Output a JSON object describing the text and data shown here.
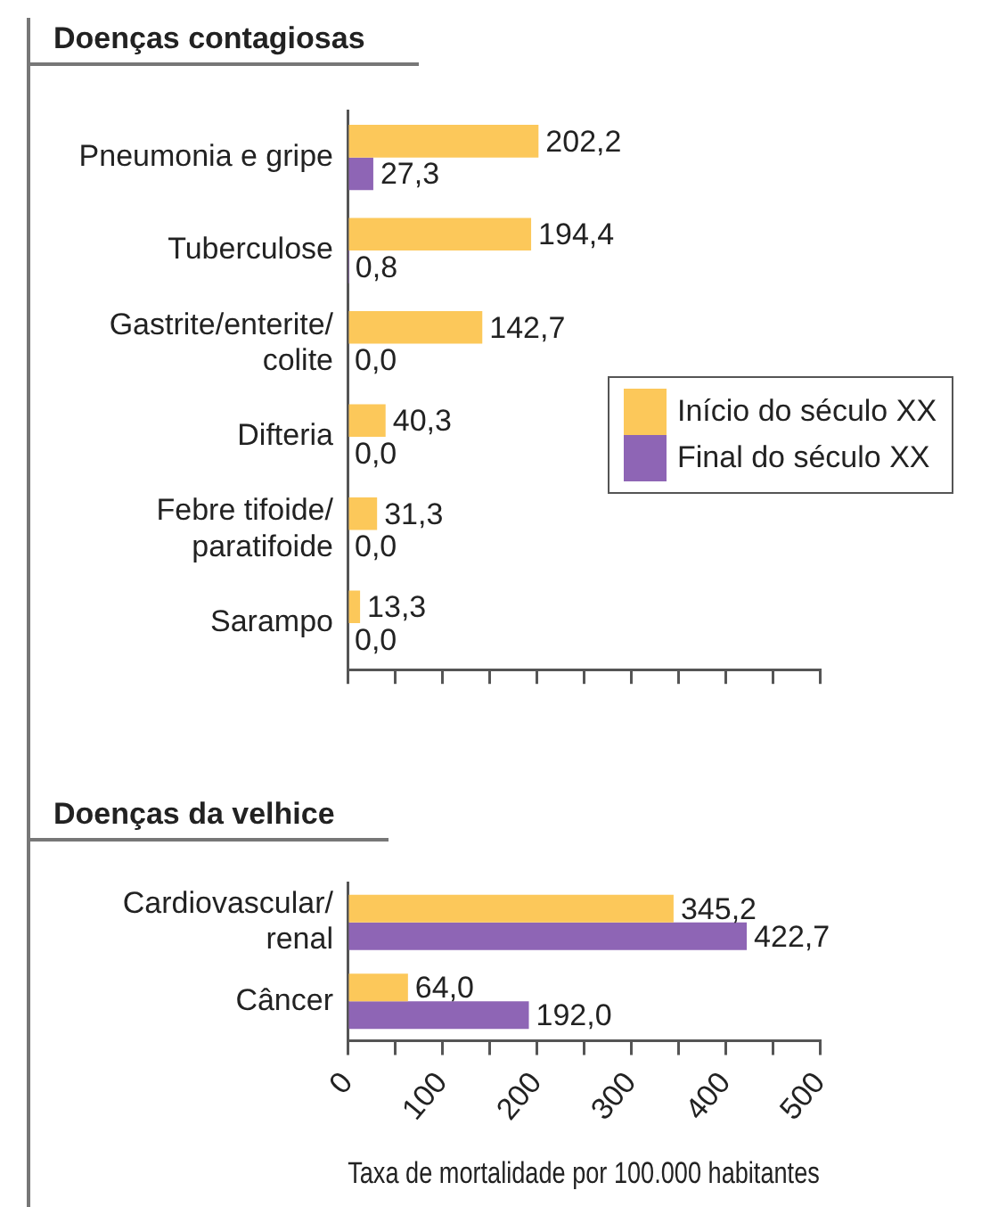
{
  "chart_data": [
    {
      "type": "bar",
      "orientation": "horizontal",
      "title": "Doenças contagiosas",
      "categories": [
        "Pneumonia e gripe",
        "Tuberculose",
        "Gastrite/enterite/ colite",
        "Difteria",
        "Febre tifoide/ paratifoide",
        "Sarampo"
      ],
      "series": [
        {
          "name": "Início do século XX",
          "color": "#fcc85a",
          "values": [
            202.2,
            194.4,
            142.7,
            40.3,
            31.3,
            13.3
          ],
          "value_labels": [
            "202,2",
            "194,4",
            "142,7",
            "40,3",
            "31,3",
            "13,3"
          ]
        },
        {
          "name": "Final do século XX",
          "color": "#8e65b5",
          "values": [
            27.3,
            0.8,
            0,
            0,
            0,
            0
          ],
          "value_labels": [
            "27,3",
            "0,8",
            "0,0",
            "0,0",
            "0,0",
            "0,0"
          ]
        }
      ],
      "xlim": [
        0,
        500
      ],
      "xticks": [
        {
          "value": 0,
          "label": null
        },
        {
          "value": 50,
          "label": null
        },
        {
          "value": 100,
          "label": null
        },
        {
          "value": 150,
          "label": null
        },
        {
          "value": 200,
          "label": null
        },
        {
          "value": 250,
          "label": null
        },
        {
          "value": 300,
          "label": null
        },
        {
          "value": 350,
          "label": null
        },
        {
          "value": 400,
          "label": null
        },
        {
          "value": 450,
          "label": null
        },
        {
          "value": 500,
          "label": null
        }
      ],
      "tick_labels": "y",
      "legend": "right",
      "grid": false
    },
    {
      "type": "bar",
      "orientation": "horizontal",
      "title": "Doenças da velhice",
      "xlabel": "Taxa de mortalidade por 100.000 habitantes",
      "categories": [
        "Cardiovascular/ renal",
        "Câncer"
      ],
      "series": [
        {
          "color": "#fcc85a",
          "values": [
            345.2,
            64.0
          ],
          "value_labels": [
            "345,2",
            "64,0"
          ]
        },
        {
          "color": "#8e65b5",
          "values": [
            422.7,
            192.0
          ],
          "value_labels": [
            "422,7",
            "192,0"
          ]
        }
      ],
      "xlim": [
        0,
        500
      ],
      "xticks": [
        0,
        {
          "value": 50,
          "label": null
        },
        100,
        {
          "value": 150,
          "label": null
        },
        200,
        {
          "value": 250,
          "label": null
        },
        300,
        {
          "value": 350,
          "label": null
        },
        400,
        {
          "value": 450,
          "label": null
        },
        500
      ],
      "legend": false,
      "grid": false
    }
  ]
}
